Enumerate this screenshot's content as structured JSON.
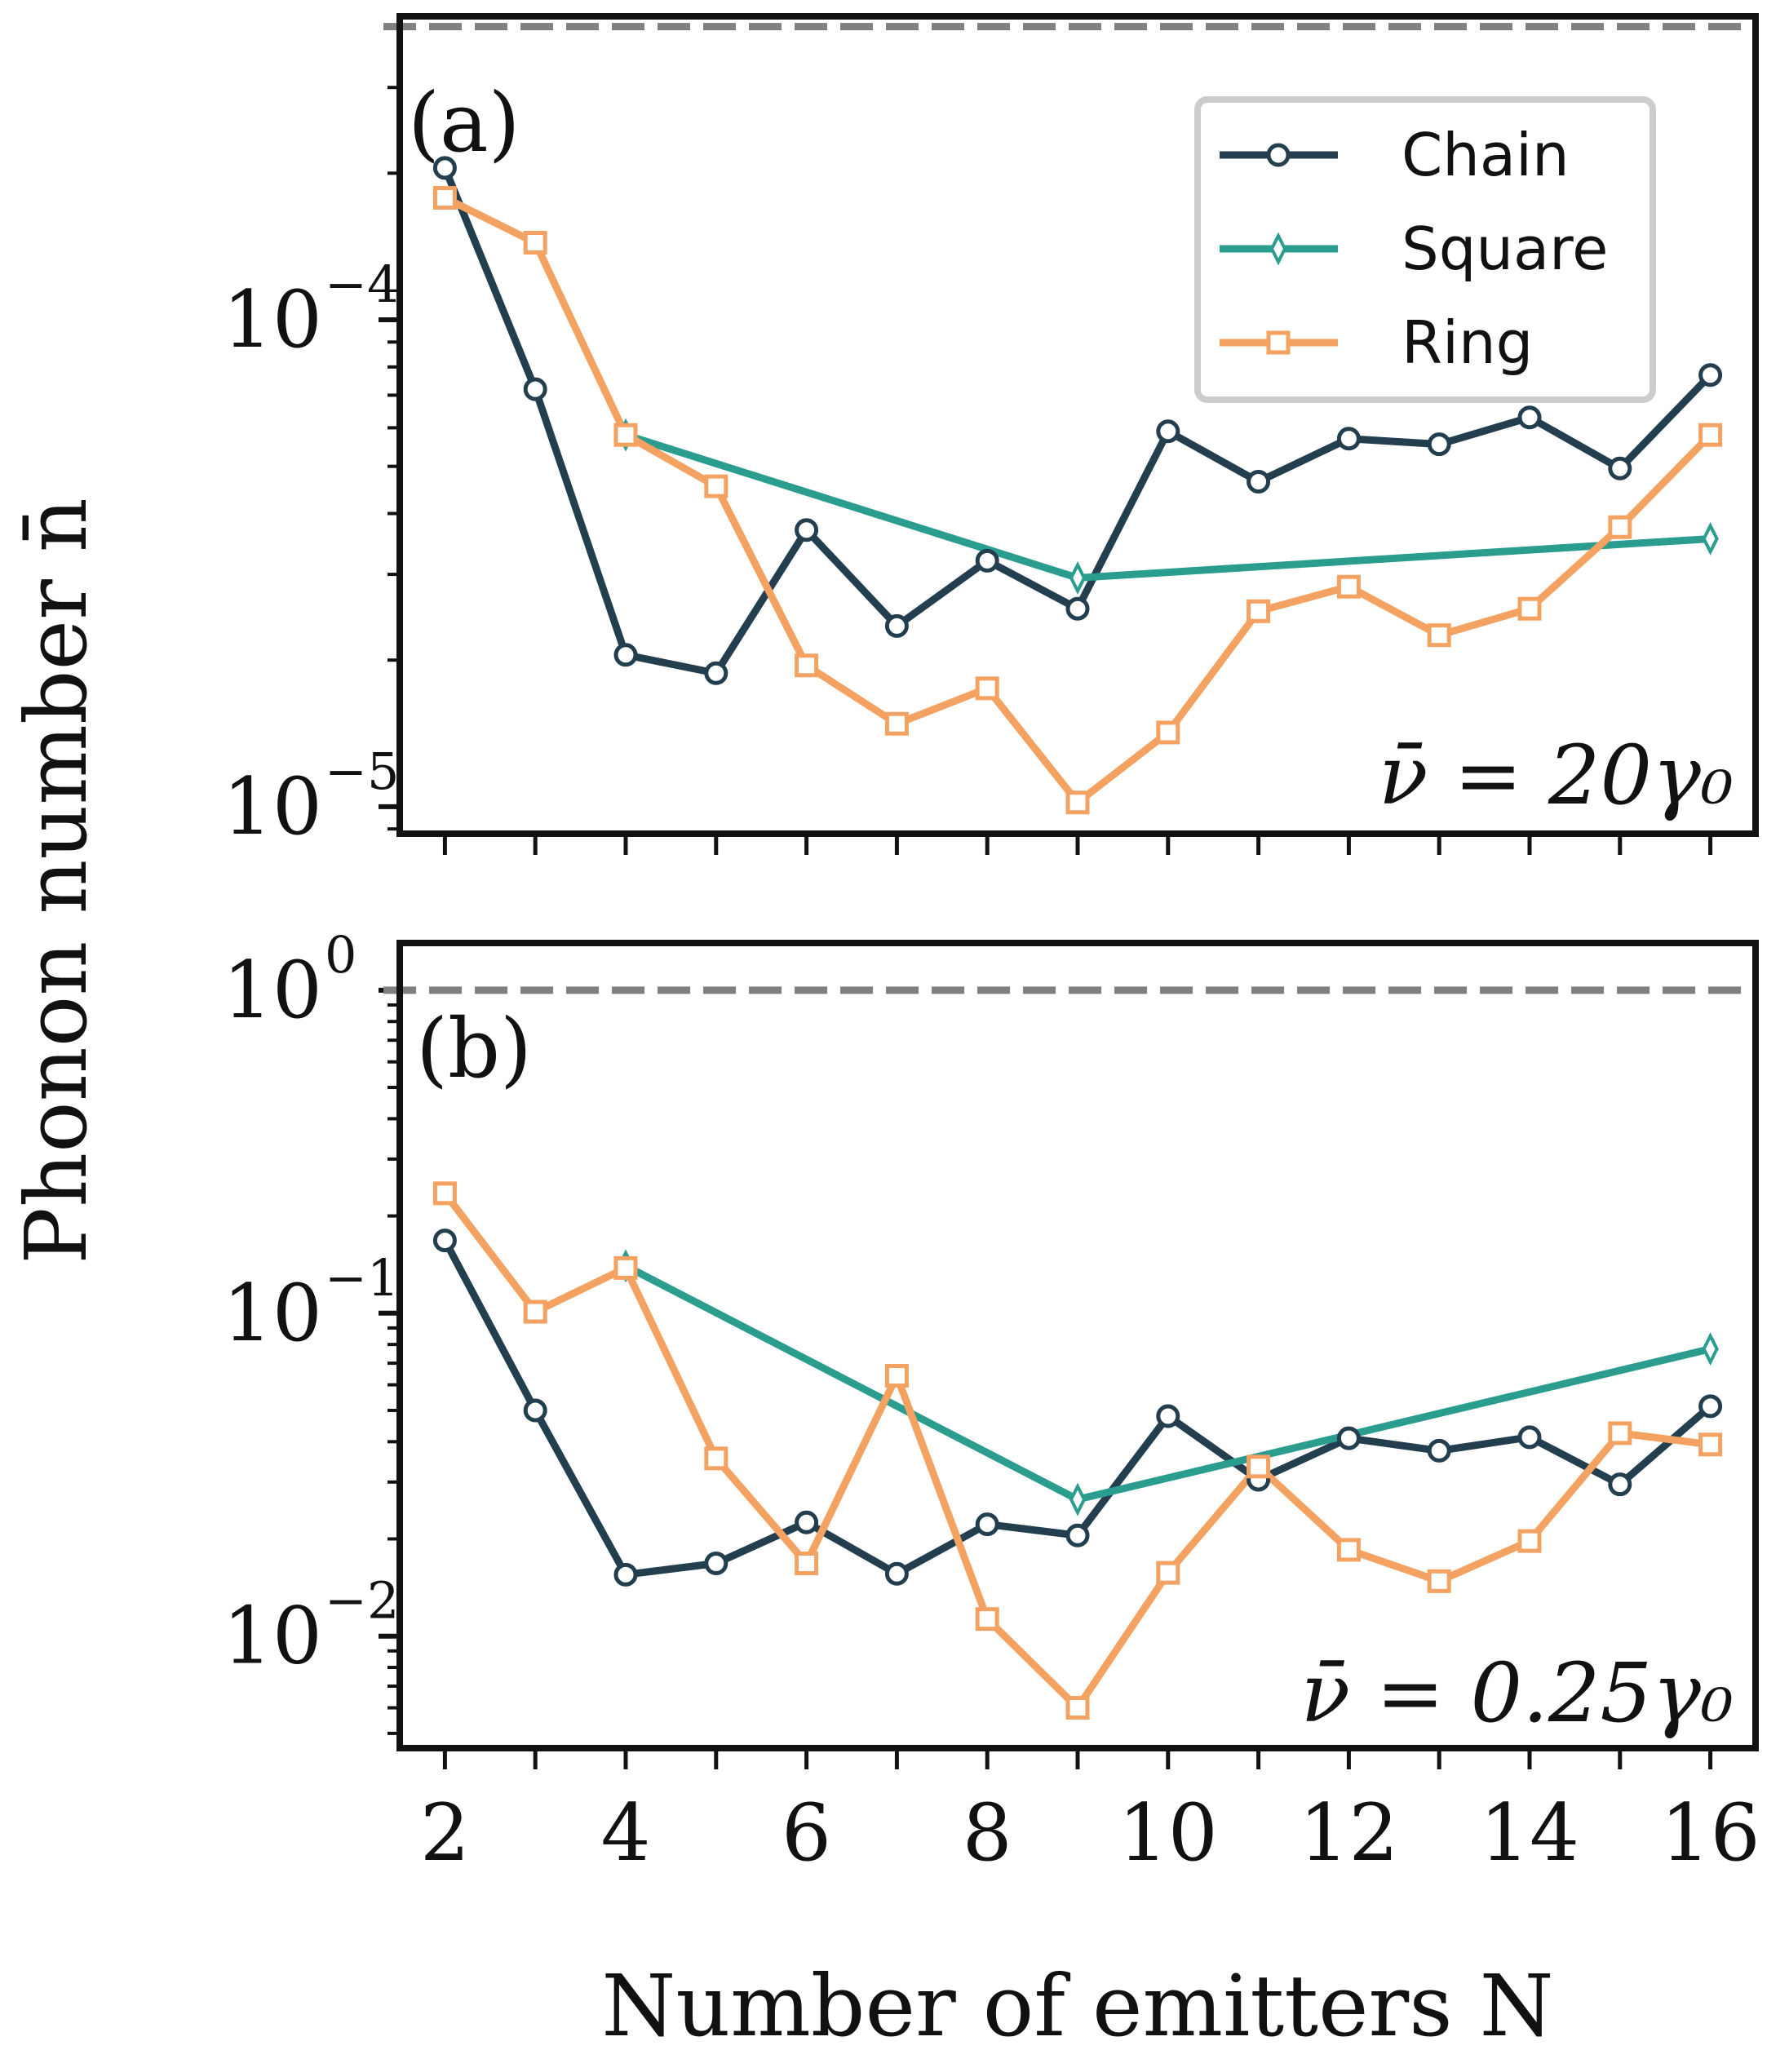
{
  "figure": {
    "y_axis_label": "Phonon number n̄",
    "x_axis_label": "Number of emitters N",
    "x_ticks": [
      2,
      4,
      6,
      8,
      10,
      12,
      14,
      16
    ]
  },
  "legend": {
    "items": [
      {
        "label": "Chain",
        "marker": "circle",
        "color": "#233E4E"
      },
      {
        "label": "Square",
        "marker": "thin-diamond",
        "color": "#2A9D8F"
      },
      {
        "label": "Ring",
        "marker": "square",
        "color": "#F4A261"
      }
    ]
  },
  "reference_line_color": "#808080",
  "chart_data": [
    {
      "type": "line",
      "panel_label": "(a)",
      "annotation": "ν̄ = 20γ₀",
      "yscale": "log",
      "ylim": [
        8.8e-06,
        0.00042
      ],
      "xlim": [
        1.5,
        16.5
      ],
      "y_tick_labels": [
        {
          "base": "10",
          "exp": "−4",
          "value": 0.0001
        },
        {
          "base": "10",
          "exp": "−5",
          "value": 1e-05
        }
      ],
      "reference_line": 0.0004,
      "xlabel": "Number of emitters N",
      "ylabel": "Phonon number n̄",
      "series": [
        {
          "name": "Chain",
          "x": [
            2,
            3,
            4,
            5,
            6,
            7,
            8,
            9,
            10,
            11,
            12,
            13,
            14,
            15,
            16
          ],
          "values": [
            0.000205,
            7.2e-05,
            2.05e-05,
            1.88e-05,
            3.7e-05,
            2.35e-05,
            3.2e-05,
            2.55e-05,
            5.9e-05,
            4.65e-05,
            5.7e-05,
            5.55e-05,
            6.3e-05,
            4.95e-05,
            7.7e-05
          ]
        },
        {
          "name": "Square",
          "x": [
            4,
            9,
            16
          ],
          "values": [
            5.8e-05,
            2.95e-05,
            3.55e-05
          ]
        },
        {
          "name": "Ring",
          "x": [
            2,
            3,
            4,
            5,
            6,
            7,
            8,
            9,
            10,
            11,
            12,
            13,
            14,
            15,
            16
          ],
          "values": [
            0.000178,
            0.000144,
            5.8e-05,
            4.55e-05,
            1.95e-05,
            1.48e-05,
            1.75e-05,
            1.02e-05,
            1.42e-05,
            2.52e-05,
            2.83e-05,
            2.25e-05,
            2.55e-05,
            3.75e-05,
            5.8e-05
          ]
        }
      ]
    },
    {
      "type": "line",
      "panel_label": "(b)",
      "annotation": "ν̄ = 0.25γ₀",
      "yscale": "log",
      "ylim": [
        0.0045,
        1.4
      ],
      "xlim": [
        1.5,
        16.5
      ],
      "y_tick_labels": [
        {
          "base": "10",
          "exp": "0",
          "value": 1
        },
        {
          "base": "10",
          "exp": "−1",
          "value": 0.1
        },
        {
          "base": "10",
          "exp": "−2",
          "value": 0.01
        }
      ],
      "reference_line": 1.0,
      "xlabel": "Number of emitters N",
      "ylabel": "Phonon number n̄",
      "series": [
        {
          "name": "Chain",
          "x": [
            2,
            3,
            4,
            5,
            6,
            7,
            8,
            9,
            10,
            11,
            12,
            13,
            14,
            15,
            16
          ],
          "values": [
            0.168,
            0.05,
            0.0155,
            0.0168,
            0.0225,
            0.0156,
            0.0222,
            0.0205,
            0.048,
            0.0305,
            0.041,
            0.0375,
            0.0413,
            0.0295,
            0.0515
          ]
        },
        {
          "name": "Square",
          "x": [
            4,
            9,
            16
          ],
          "values": [
            0.14,
            0.0265,
            0.0775
          ]
        },
        {
          "name": "Ring",
          "x": [
            2,
            3,
            4,
            5,
            6,
            7,
            8,
            9,
            10,
            11,
            12,
            13,
            14,
            15,
            16
          ],
          "values": [
            0.235,
            0.101,
            0.138,
            0.0355,
            0.0168,
            0.064,
            0.0113,
            0.006,
            0.0157,
            0.0335,
            0.0185,
            0.0148,
            0.0197,
            0.0425,
            0.0392
          ]
        }
      ]
    }
  ]
}
